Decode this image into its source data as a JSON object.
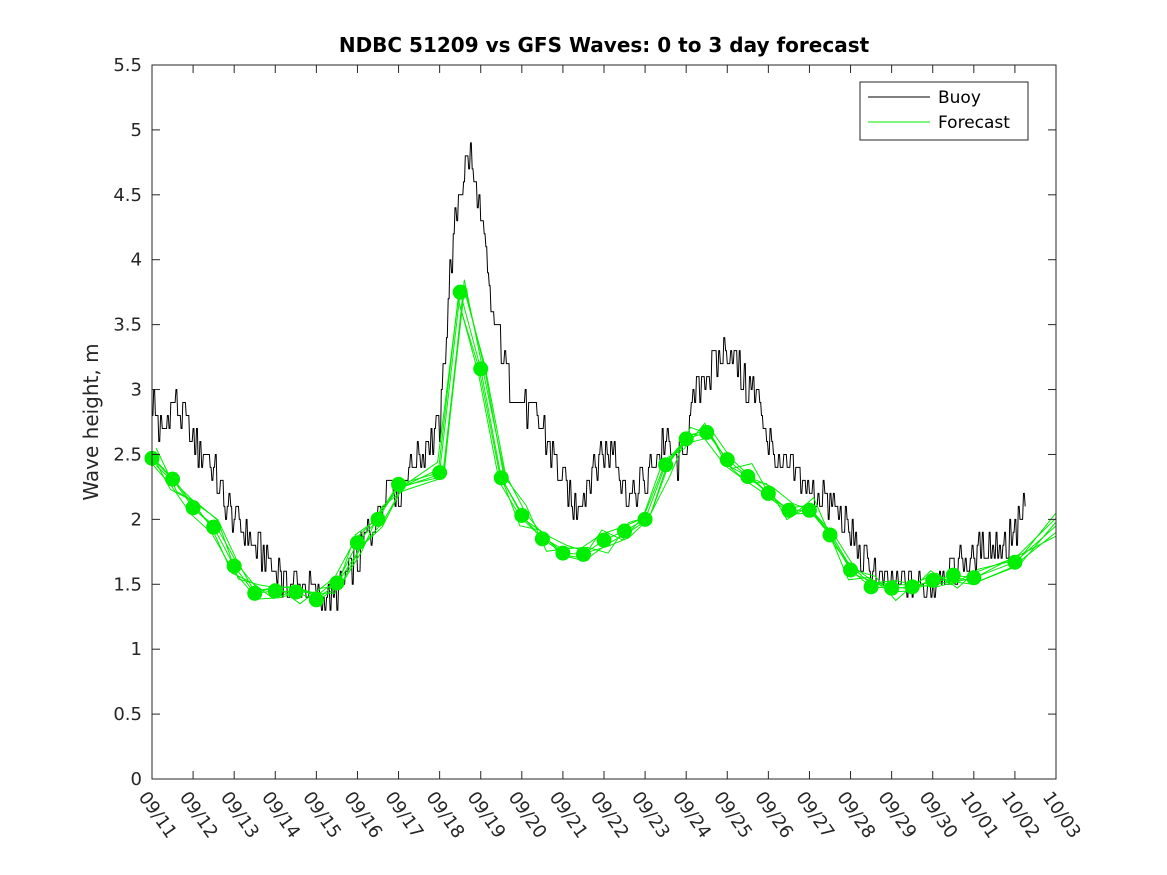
{
  "chart_data": {
    "type": "line",
    "title": "NDBC 51209 vs GFS Waves: 0 to 3 day forecast",
    "xlabel": "",
    "ylabel": "Wave height, m",
    "ylim": [
      0,
      5.5
    ],
    "yticks": [
      0,
      0.5,
      1,
      1.5,
      2,
      2.5,
      3,
      3.5,
      4,
      4.5,
      5,
      5.5
    ],
    "ytick_labels": [
      "0",
      "0.5",
      "1",
      "1.5",
      "2",
      "2.5",
      "3",
      "3.5",
      "4",
      "4.5",
      "5",
      "5.5"
    ],
    "x_unit": "day index from 09/11",
    "xlim": [
      0,
      22
    ],
    "xtick_labels": [
      "09/11",
      "09/12",
      "09/13",
      "09/14",
      "09/15",
      "09/16",
      "09/17",
      "09/18",
      "09/19",
      "09/20",
      "09/21",
      "09/22",
      "09/23",
      "09/24",
      "09/25",
      "09/26",
      "09/27",
      "09/28",
      "09/29",
      "09/30",
      "10/01",
      "10/02",
      "10/03"
    ],
    "legend": {
      "location": "top-right",
      "entries": [
        "Buoy",
        "Forecast"
      ]
    },
    "series": [
      {
        "name": "Buoy",
        "color": "#000000",
        "x": [
          0,
          0.25,
          0.5,
          0.75,
          1.0,
          1.25,
          1.5,
          1.75,
          2.0,
          2.25,
          2.5,
          2.75,
          3.0,
          3.25,
          3.5,
          3.75,
          4.0,
          4.25,
          4.5,
          4.75,
          5.0,
          5.25,
          5.5,
          5.75,
          6.0,
          6.25,
          6.5,
          6.75,
          7.0,
          7.25,
          7.5,
          7.75,
          8.0,
          8.25,
          8.5,
          8.75,
          9.0,
          9.25,
          9.5,
          9.75,
          10.0,
          10.25,
          10.5,
          10.75,
          11.0,
          11.25,
          11.5,
          11.75,
          12.0,
          12.25,
          12.5,
          12.75,
          13.0,
          13.25,
          13.5,
          13.75,
          14.0,
          14.25,
          14.5,
          14.75,
          15.0,
          15.25,
          15.5,
          15.75,
          16.0,
          16.25,
          16.5,
          16.75,
          17.0,
          17.25,
          17.5,
          17.75,
          18.0,
          18.25,
          18.5,
          18.75,
          19.0,
          19.25,
          19.5,
          19.75,
          20.0,
          20.25,
          20.5,
          20.75,
          21.0,
          21.25
        ],
        "values": [
          2.9,
          2.6,
          2.9,
          2.8,
          2.6,
          2.5,
          2.4,
          2.1,
          2.0,
          1.9,
          1.8,
          1.7,
          1.6,
          1.5,
          1.5,
          1.5,
          1.4,
          1.4,
          1.4,
          1.6,
          1.7,
          1.9,
          2.0,
          2.3,
          2.2,
          2.4,
          2.5,
          2.6,
          2.7,
          3.9,
          4.6,
          4.8,
          4.3,
          3.6,
          3.3,
          3.0,
          2.9,
          2.8,
          2.7,
          2.5,
          2.3,
          2.1,
          2.2,
          2.4,
          2.5,
          2.6,
          2.2,
          2.2,
          2.3,
          2.5,
          2.6,
          2.4,
          2.6,
          3.0,
          3.1,
          3.2,
          3.3,
          3.2,
          3.0,
          2.9,
          2.6,
          2.4,
          2.4,
          2.3,
          2.2,
          2.2,
          2.1,
          2.0,
          1.9,
          1.7,
          1.6,
          1.5,
          1.5,
          1.5,
          1.5,
          1.5,
          1.5,
          1.6,
          1.6,
          1.7,
          1.7,
          1.8,
          1.8,
          1.8,
          1.9,
          2.1
        ]
      },
      {
        "name": "Forecast",
        "color": "#00ee00",
        "marker_x": [
          0,
          0.5,
          1.0,
          1.5,
          2.0,
          2.5,
          3.0,
          3.5,
          4.0,
          4.5,
          5.0,
          5.5,
          6.0,
          7.0,
          7.5,
          8.0,
          8.5,
          9.0,
          9.5,
          10.0,
          10.5,
          11.0,
          11.5,
          12.0,
          12.5,
          13.0,
          13.5,
          14.0,
          14.5,
          15.0,
          15.5,
          16.0,
          16.5,
          17.0,
          17.5,
          18.0,
          18.5,
          19.0,
          19.5,
          20.0,
          21.0
        ],
        "values": [
          2.47,
          2.31,
          2.09,
          1.94,
          1.64,
          1.43,
          1.45,
          1.44,
          1.38,
          1.51,
          1.82,
          2.0,
          2.27,
          2.36,
          3.75,
          3.16,
          2.32,
          2.03,
          1.85,
          1.74,
          1.73,
          1.84,
          1.91,
          2.0,
          2.42,
          2.62,
          2.67,
          2.46,
          2.33,
          2.2,
          2.07,
          2.07,
          1.88,
          1.61,
          1.48,
          1.47,
          1.48,
          1.53,
          1.57,
          1.55,
          1.67
        ]
      }
    ]
  }
}
